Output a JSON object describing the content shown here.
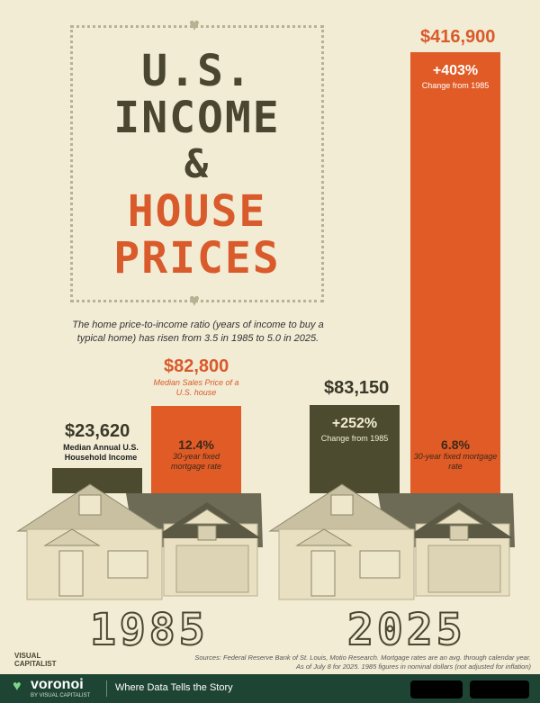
{
  "title": {
    "line1": "U.S.",
    "line2": "INCOME",
    "line3": "&",
    "line4": "HOUSE",
    "line5": "PRICES"
  },
  "subtitle": "The home price-to-income ratio (years of income to buy a typical home) has risen from 3.5 in 1985 to 5.0 in 2025.",
  "colors": {
    "income": "#4c4a2f",
    "house_price": "#e15b26",
    "background": "#f2ecd5"
  },
  "chart_data": {
    "type": "bar",
    "categories": [
      "1985",
      "2025"
    ],
    "series": [
      {
        "name": "Median Annual U.S. Household Income",
        "values": [
          23620,
          83150
        ]
      },
      {
        "name": "Median Sales Price of a U.S. house",
        "values": [
          82800,
          416900
        ]
      }
    ],
    "value_labels": {
      "income": [
        "$23,620",
        "$83,150"
      ],
      "house": [
        "$82,800",
        "$416,900"
      ]
    },
    "series_labels": {
      "income_1985": "Median Annual U.S. Household Income",
      "house_1985": "Median Sales Price of a U.S. house"
    },
    "changes": {
      "income": {
        "value": "+252%",
        "label": "Change from 1985"
      },
      "house": {
        "value": "+403%",
        "label": "Change from 1985"
      }
    },
    "mortgage_rates": [
      {
        "value": "12.4%",
        "label": "30-year fixed mortgage rate"
      },
      {
        "value": "6.8%",
        "label": "30-year fixed mortgage rate"
      }
    ],
    "ylim": [
      0,
      416900
    ]
  },
  "source": {
    "line1": "Sources: Federal Reserve Bank of St. Louis, Motio Research. Mortgage rates are an avg. through calendar year.",
    "line2": "As of July 8 for 2025. 1985 figures in nominal dollars (not adjusted for inflation)"
  },
  "brand": {
    "vc_line1": "VISUAL",
    "vc_line2": "CAPITALIST",
    "voronoi": "voronoi",
    "by": "BY VISUAL CAPITALIST",
    "tagline": "Where Data Tells the Story"
  }
}
